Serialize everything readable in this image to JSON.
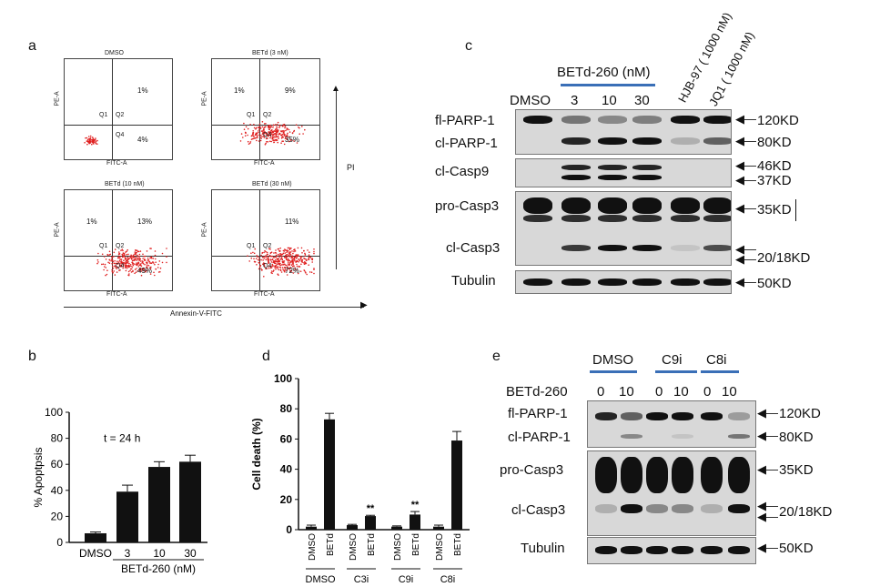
{
  "panel_a": {
    "letter": "a",
    "plots": [
      {
        "title": "DMSO",
        "q_ul": "",
        "q_ur": "1%",
        "q_lr": "4%",
        "q1": "Q1",
        "q2": "Q2",
        "q4": "Q4"
      },
      {
        "title": "BETd (3 nM)",
        "q_ul": "1%",
        "q_ur": "9%",
        "q_lr": "35%",
        "q1": "Q1",
        "q2": "Q2",
        "q4": "Q4"
      },
      {
        "title": "BETd (10 nM)",
        "q_ul": "1%",
        "q_ur": "13%",
        "q_lr": "49%",
        "q1": "Q1",
        "q2": "Q2",
        "q4": "Q4"
      },
      {
        "title": "BETd (30 nM)",
        "q_ul": "",
        "q_ur": "11%",
        "q_lr": "72%",
        "q1": "Q1",
        "q2": "Q2",
        "q4": "Q4"
      }
    ],
    "yaxis_small": "PE-A",
    "xaxis_small": "FITC-A",
    "pi_label": "PI",
    "x_label": "Annexin-V-FITC"
  },
  "panel_b": {
    "letter": "b",
    "chart_data": {
      "type": "bar",
      "categories": [
        "DMSO",
        "3",
        "10",
        "30"
      ],
      "values": [
        7,
        39,
        58,
        62
      ],
      "errors": [
        1,
        5,
        4,
        5
      ],
      "ylabel": "% Apoptpsis",
      "xlabel": "BETd-260 (nM)",
      "annotation": "t = 24 h",
      "ylim": [
        0,
        100
      ],
      "yticks": [
        0,
        20,
        40,
        60,
        80,
        100
      ]
    }
  },
  "panel_d": {
    "letter": "d",
    "chart_data": {
      "type": "bar",
      "categories": [
        "DMSO",
        "BETd",
        "DMSO",
        "BETd",
        "DMSO",
        "BETd",
        "DMSO",
        "BETd"
      ],
      "groups": [
        "DMSO",
        "C3i",
        "C9i",
        "C8i"
      ],
      "values": [
        2,
        73,
        3,
        9,
        2,
        10,
        2,
        59
      ],
      "errors": [
        1,
        4,
        0.5,
        0.5,
        0.5,
        2,
        1,
        6
      ],
      "significance": [
        "",
        "",
        "",
        "**",
        "",
        "**",
        "",
        ""
      ],
      "ylabel": "Cell death (%)",
      "ylim": [
        0,
        100
      ],
      "yticks": [
        0,
        20,
        40,
        60,
        80,
        100
      ]
    }
  },
  "panel_c": {
    "letter": "c",
    "header": "BETd-260 (nM)",
    "lanes": [
      "DMSO",
      "3",
      "10",
      "30"
    ],
    "rotated": [
      "HJB-97 ( 1000 nM)",
      "JQ1 ( 1000 nM)"
    ],
    "rows": [
      "fl-PARP-1",
      "cl-PARP-1",
      "cl-Casp9",
      "pro-Casp3",
      "cl-Casp3",
      "Tubulin"
    ],
    "sizes": [
      "120KD",
      "80KD",
      "46KD",
      "37KD",
      "35KD",
      "20/18KD",
      "50KD"
    ]
  },
  "panel_e": {
    "letter": "e",
    "groups": [
      "DMSO",
      "C9i",
      "C8i"
    ],
    "betd_label": "BETd-260",
    "doses": [
      "0",
      "10",
      "0",
      "10",
      "0",
      "10"
    ],
    "rows": [
      "fl-PARP-1",
      "cl-PARP-1",
      "pro-Casp3",
      "cl-Casp3",
      "Tubulin"
    ],
    "sizes": [
      "120KD",
      "80KD",
      "35KD",
      "20/18KD",
      "50KD"
    ]
  }
}
